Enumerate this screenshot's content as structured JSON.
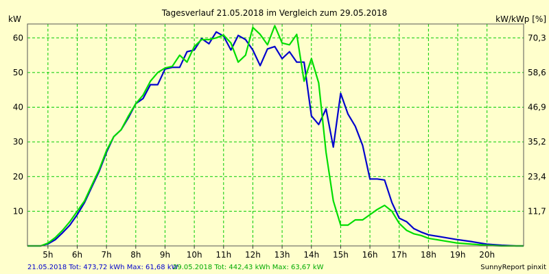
{
  "title": "Tagesverlauf 21.05.2018 im Vergleich zum 29.05.2018",
  "ylabel_left": "kW",
  "ylabel_right": "kW/kWp [%]",
  "footer": {
    "series1_text": "21.05.2018 Tot: 473,72 kWh Max: 61,68 kW",
    "series2_text": "29.05.2018 Tot: 442,43 kWh Max: 63,67 kW",
    "credit": "SunnyReport pinxit"
  },
  "colors": {
    "background": "#ffffcc",
    "grid": "#00cc00",
    "series1": "#0000cc",
    "series2": "#00dd00"
  },
  "chart_data": {
    "type": "line",
    "xlim": [
      4.3,
      21.25
    ],
    "ylim": [
      0,
      64
    ],
    "grid": true,
    "x_ticks": [
      5,
      6,
      7,
      8,
      9,
      10,
      11,
      12,
      13,
      14,
      15,
      16,
      17,
      18,
      19,
      20
    ],
    "x_tick_labels": [
      "5h",
      "6h",
      "7h",
      "8h",
      "9h",
      "10h",
      "11h",
      "12h",
      "13h",
      "14h",
      "15h",
      "16h",
      "17h",
      "18h",
      "19h",
      "20h"
    ],
    "y_ticks": [
      10,
      20,
      30,
      40,
      50,
      60
    ],
    "y_tick_labels": [
      "10",
      "20",
      "30",
      "40",
      "50",
      "60"
    ],
    "y2_ticks": [
      10,
      20,
      30,
      40,
      50,
      60
    ],
    "y2_tick_labels": [
      "11,7",
      "23,4",
      "35,2",
      "46,9",
      "58,6",
      "70,3"
    ],
    "series": [
      {
        "name": "21.05.2018",
        "color": "#0000cc",
        "x": [
          4.3,
          4.75,
          5.0,
          5.25,
          5.5,
          5.75,
          6.0,
          6.25,
          6.5,
          6.75,
          7.0,
          7.25,
          7.5,
          7.75,
          8.0,
          8.25,
          8.5,
          8.75,
          9.0,
          9.25,
          9.5,
          9.75,
          10.0,
          10.25,
          10.5,
          10.75,
          11.0,
          11.25,
          11.5,
          11.75,
          12.0,
          12.25,
          12.5,
          12.75,
          13.0,
          13.25,
          13.5,
          13.75,
          14.0,
          14.25,
          14.5,
          14.75,
          15.0,
          15.25,
          15.5,
          15.75,
          16.0,
          16.25,
          16.5,
          16.75,
          17.0,
          17.25,
          17.5,
          17.75,
          18.0,
          18.5,
          19.0,
          19.5,
          20.0,
          20.5,
          21.0,
          21.25
        ],
        "y": [
          0,
          0,
          0.6,
          1.8,
          3.8,
          6.0,
          9.0,
          12.5,
          17.0,
          21.5,
          27.0,
          31.5,
          33.5,
          37.0,
          41.0,
          42.5,
          46.5,
          46.5,
          51.0,
          51.5,
          51.5,
          56.0,
          56.5,
          59.8,
          58.3,
          61.7,
          60.5,
          56.5,
          60.7,
          59.5,
          56.5,
          52.0,
          56.8,
          57.5,
          54.0,
          56.0,
          53.0,
          53.0,
          37.5,
          35.0,
          39.5,
          28.5,
          44.0,
          38.0,
          34.5,
          29.0,
          19.3,
          19.3,
          19.0,
          12.5,
          8.0,
          7.0,
          5.0,
          4.0,
          3.2,
          2.5,
          1.8,
          1.2,
          0.5,
          0.2,
          0,
          0
        ]
      },
      {
        "name": "29.05.2018",
        "color": "#00dd00",
        "x": [
          4.3,
          4.75,
          5.0,
          5.25,
          5.5,
          5.75,
          6.0,
          6.25,
          6.5,
          6.75,
          7.0,
          7.25,
          7.5,
          7.75,
          8.0,
          8.25,
          8.5,
          8.75,
          9.0,
          9.25,
          9.5,
          9.75,
          10.0,
          10.25,
          10.5,
          10.75,
          11.0,
          11.25,
          11.5,
          11.75,
          12.0,
          12.25,
          12.5,
          12.75,
          13.0,
          13.25,
          13.5,
          13.75,
          14.0,
          14.25,
          14.5,
          14.75,
          15.0,
          15.25,
          15.5,
          15.75,
          16.0,
          16.25,
          16.5,
          16.75,
          17.0,
          17.25,
          17.5,
          17.75,
          18.0,
          18.5,
          19.0,
          19.5,
          20.0,
          20.5,
          21.0,
          21.25
        ],
        "y": [
          0,
          0,
          0.8,
          2.4,
          4.5,
          7.0,
          10.0,
          13.0,
          17.5,
          22.0,
          27.5,
          31.5,
          33.5,
          37.5,
          41.0,
          43.5,
          47.5,
          50.0,
          51.3,
          51.8,
          55.0,
          53.0,
          57.5,
          59.5,
          59.5,
          60.0,
          60.8,
          58.5,
          53.0,
          55.0,
          63.0,
          61.0,
          58.0,
          63.5,
          58.5,
          58.0,
          61.0,
          47.5,
          54.0,
          47.0,
          27.0,
          13.0,
          6.0,
          6.0,
          7.5,
          7.5,
          9.0,
          10.5,
          11.7,
          10.0,
          6.5,
          4.5,
          3.5,
          3.0,
          2.2,
          1.5,
          0.8,
          0.5,
          0.2,
          0,
          0,
          0
        ]
      }
    ]
  }
}
